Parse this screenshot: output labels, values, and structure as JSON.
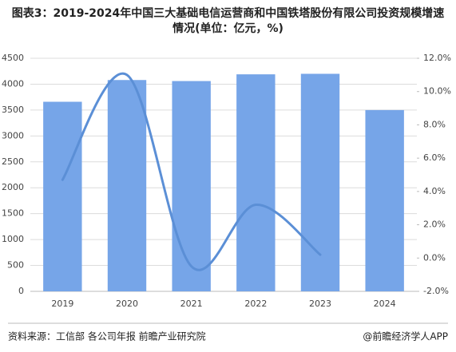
{
  "chart_data": {
    "type": "bar_line",
    "title": "图表3：2019-2024年中国三大基础电信运营商和中国铁塔股份有限公司投资规模增速情况(单位：亿元，%)",
    "categories": [
      "2019",
      "2020",
      "2021",
      "2022",
      "2023",
      "2024"
    ],
    "series": [
      {
        "name": "投资规模",
        "type": "bar",
        "color": "#76a5e8",
        "values": [
          3660,
          4080,
          4060,
          4190,
          4200,
          3500
        ]
      },
      {
        "name": "增速",
        "type": "line",
        "axis": "y2",
        "color": "#5b8fd6",
        "values": [
          4.7,
          11.0,
          -0.5,
          3.2,
          0.2,
          null
        ]
      }
    ],
    "ylim": [
      0,
      4500
    ],
    "yticks": [
      0,
      500,
      1000,
      1500,
      2000,
      2500,
      3000,
      3500,
      4000,
      4500
    ],
    "y2lim": [
      -2,
      12
    ],
    "y2ticks": [
      {
        "value": -2,
        "label": "-2.0%"
      },
      {
        "value": 0,
        "label": "0.0%"
      },
      {
        "value": 2,
        "label": "2.0%"
      },
      {
        "value": 4,
        "label": "4.0%"
      },
      {
        "value": 6,
        "label": "6.0%"
      },
      {
        "value": 8,
        "label": "8.0%"
      },
      {
        "value": 10,
        "label": "10.0%"
      },
      {
        "value": 12,
        "label": "12.0%"
      }
    ],
    "grid": true,
    "source": "资料来源：工信部 各公司年报 前瞻产业研究院",
    "credit": "@前瞻经济学人APP"
  }
}
